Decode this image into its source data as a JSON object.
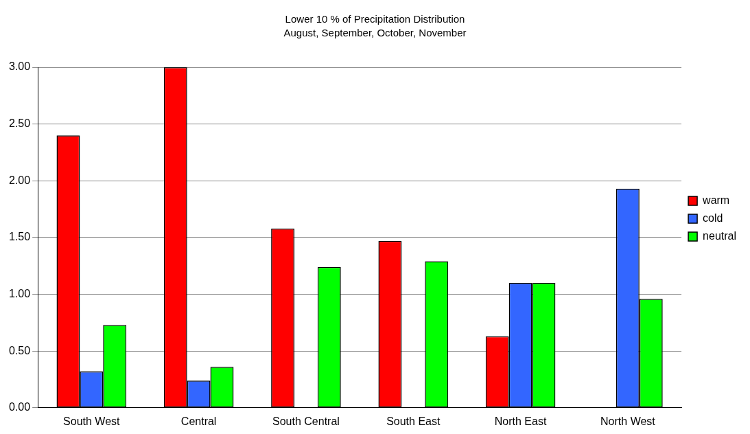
{
  "chart_data": {
    "type": "bar",
    "title": "Lower 10 % of Precipitation Distribution",
    "subtitle": "August, September, October, November",
    "categories": [
      "South West",
      "Central",
      "South Central",
      "South East",
      "North East",
      "North West"
    ],
    "series": [
      {
        "name": "warm",
        "color": "#ff0000",
        "values": [
          2.4,
          3.0,
          1.58,
          1.47,
          0.63,
          0
        ]
      },
      {
        "name": "cold",
        "color": "#3366ff",
        "values": [
          0.32,
          0.24,
          0,
          0,
          1.1,
          1.93
        ]
      },
      {
        "name": "neutral",
        "color": "#00ff00",
        "values": [
          0.73,
          0.36,
          1.24,
          1.29,
          1.1,
          0.96
        ]
      }
    ],
    "ylim": [
      0,
      3
    ],
    "yticks": [
      {
        "value": 0,
        "label": "0.00"
      },
      {
        "value": 0.5,
        "label": "0.50"
      },
      {
        "value": 1,
        "label": "1.00"
      },
      {
        "value": 1.5,
        "label": "1.50"
      },
      {
        "value": 2,
        "label": "2.00"
      },
      {
        "value": 2.5,
        "label": "2.50"
      },
      {
        "value": 3,
        "label": "3.00"
      }
    ],
    "grid": "y",
    "legend": "right"
  }
}
